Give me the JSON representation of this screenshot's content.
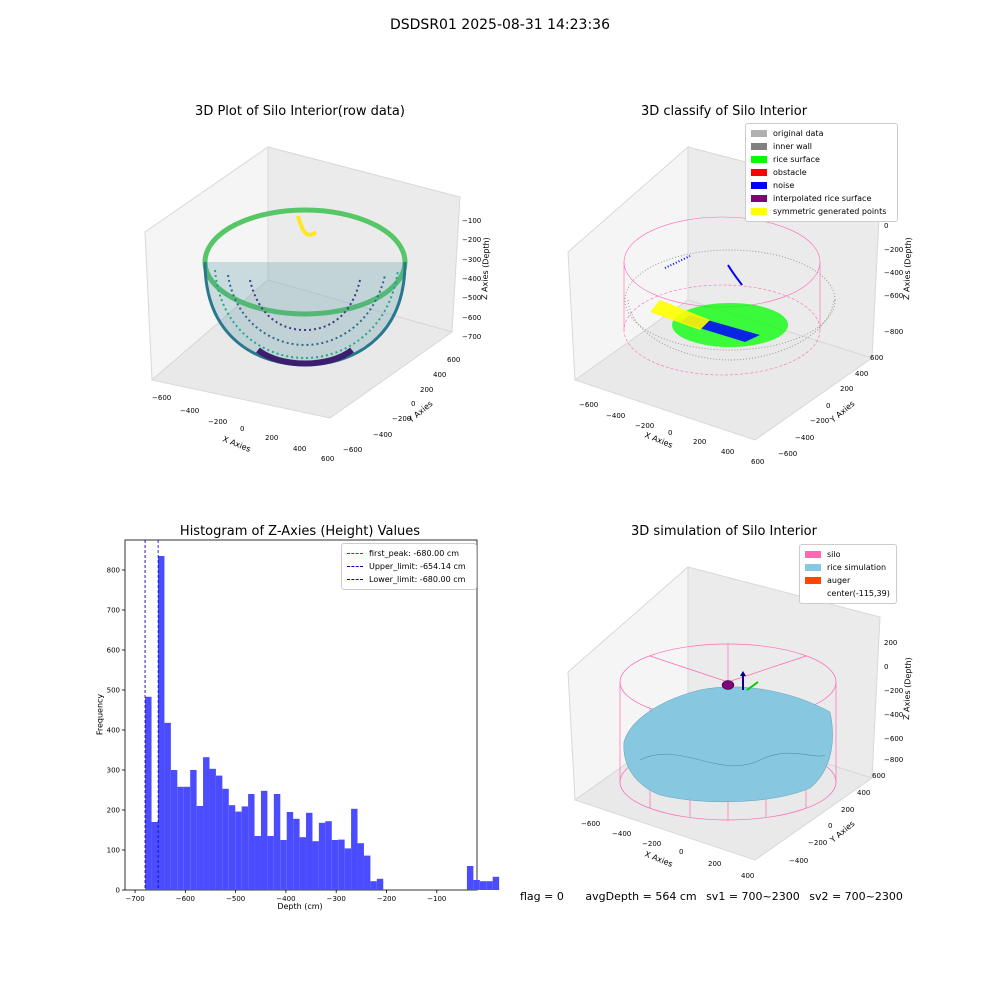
{
  "suptitle": "DSDSR01 2025-08-31 14:23:36",
  "colors": {
    "hist_bar": "#4c4cff",
    "silo": "#ff69b4",
    "rice_sim": "#87c8e0",
    "auger": "#ff4500"
  },
  "panels": {
    "p1": {
      "title": "3D Plot of Silo Interior(row data)",
      "xlabel": "X Axies",
      "ylabel": "Y Axies",
      "zlabel": "Z Axies (Depth)",
      "xticks": [
        "−600",
        "−400",
        "−200",
        "0",
        "200",
        "400",
        "600"
      ],
      "yticks": [
        "−600",
        "−400",
        "−200",
        "0",
        "200",
        "400",
        "600"
      ],
      "zticks": [
        "−100",
        "−200",
        "−300",
        "−400",
        "−500",
        "−600",
        "−700"
      ]
    },
    "p2": {
      "title": "3D classify of Silo Interior",
      "xlabel": "X Axies",
      "ylabel": "Y Axies",
      "zlabel": "Z Axies (Depth)",
      "xticks": [
        "−600",
        "−400",
        "−200",
        "0",
        "200",
        "400",
        "600"
      ],
      "yticks": [
        "−600",
        "−400",
        "−200",
        "0",
        "200",
        "400",
        "600"
      ],
      "zticks": [
        "200",
        "0",
        "−200",
        "−400",
        "−600",
        "−800"
      ],
      "legend": [
        {
          "label": "original data",
          "color": "#b0b0b0"
        },
        {
          "label": "inner wall",
          "color": "#808080"
        },
        {
          "label": "rice surface",
          "color": "#00ff00"
        },
        {
          "label": "obstacle",
          "color": "#ff0000"
        },
        {
          "label": "noise",
          "color": "#0000ff"
        },
        {
          "label": "interpolated rice surface",
          "color": "#800080"
        },
        {
          "label": "symmetric generated points",
          "color": "#ffff00"
        }
      ]
    },
    "p4": {
      "title": "3D simulation of Silo Interior",
      "xlabel": "X Axies",
      "ylabel": "Y Axies",
      "zlabel": "Z Axies (Depth)",
      "xticks": [
        "−600",
        "−400",
        "−200",
        "0",
        "200",
        "400"
      ],
      "yticks": [
        "−400",
        "−200",
        "0",
        "200",
        "400",
        "600"
      ],
      "zticks": [
        "200",
        "0",
        "−200",
        "−400",
        "−600",
        "−800"
      ],
      "legend": [
        {
          "label": "silo",
          "color": "#ff69b4"
        },
        {
          "label": "rice simulation",
          "color": "#87c8e0"
        },
        {
          "label": "auger",
          "color": "#ff4500"
        },
        {
          "label": "center(-115,39)",
          "color": ""
        }
      ]
    }
  },
  "status": {
    "flag": "flag = 0",
    "avg": "avgDepth = 564 cm",
    "sv1": "sv1 = 700~2300",
    "sv2": "sv2 = 700~2300"
  },
  "chart_data": [
    {
      "type": "scatter",
      "title": "3D Plot of Silo Interior(row data)",
      "xlabel": "X Axies",
      "ylabel": "Y Axies",
      "zlabel": "Z Axies (Depth)",
      "xlim": [
        -700,
        700
      ],
      "ylim": [
        -700,
        700
      ],
      "zlim": [
        -700,
        -100
      ]
    },
    {
      "type": "scatter",
      "title": "3D classify of Silo Interior",
      "xlabel": "X Axies",
      "ylabel": "Y Axies",
      "zlabel": "Z Axies (Depth)",
      "series": [
        {
          "name": "original data"
        },
        {
          "name": "inner wall"
        },
        {
          "name": "rice surface"
        },
        {
          "name": "obstacle"
        },
        {
          "name": "noise"
        },
        {
          "name": "interpolated rice surface"
        },
        {
          "name": "symmetric generated points"
        }
      ]
    },
    {
      "type": "bar",
      "title": "Histogram of Z-Axies (Height) Values",
      "xlabel": "Depth (cm)",
      "ylabel": "Frequency",
      "xlim": [
        -720,
        -20
      ],
      "ylim": [
        0,
        875
      ],
      "xticks": [
        -700,
        -600,
        -500,
        -400,
        -300,
        -200,
        -100
      ],
      "yticks": [
        0,
        100,
        200,
        300,
        400,
        500,
        600,
        700,
        800
      ],
      "bin_start": -680,
      "bin_width": 12.8,
      "values": [
        483,
        170,
        835,
        418,
        300,
        258,
        258,
        300,
        210,
        332,
        303,
        286,
        253,
        212,
        196,
        209,
        240,
        135,
        248,
        135,
        240,
        125,
        195,
        178,
        132,
        193,
        122,
        168,
        172,
        125,
        126,
        104,
        203,
        117,
        86,
        22,
        28,
        0,
        0,
        0,
        0,
        0,
        0,
        0,
        0,
        0,
        0,
        0,
        0,
        0,
        60,
        25,
        22,
        22,
        33
      ],
      "lines": [
        {
          "name": "first_peak: -680.00 cm",
          "x": -680,
          "color": "#ff0000"
        },
        {
          "name": "Upper_limit: -654.14 cm",
          "x": -654.14,
          "color": "#0000cc"
        },
        {
          "name": "Lower_limit: -680.00 cm",
          "x": -680,
          "color": "#0000cc"
        }
      ]
    },
    {
      "type": "scatter",
      "title": "3D simulation of Silo Interior",
      "xlabel": "X Axies",
      "ylabel": "Y Axies",
      "zlabel": "Z Axies (Depth)",
      "series": [
        {
          "name": "silo"
        },
        {
          "name": "rice simulation"
        },
        {
          "name": "auger"
        }
      ],
      "annotations": [
        "center(-115,39)"
      ]
    }
  ]
}
